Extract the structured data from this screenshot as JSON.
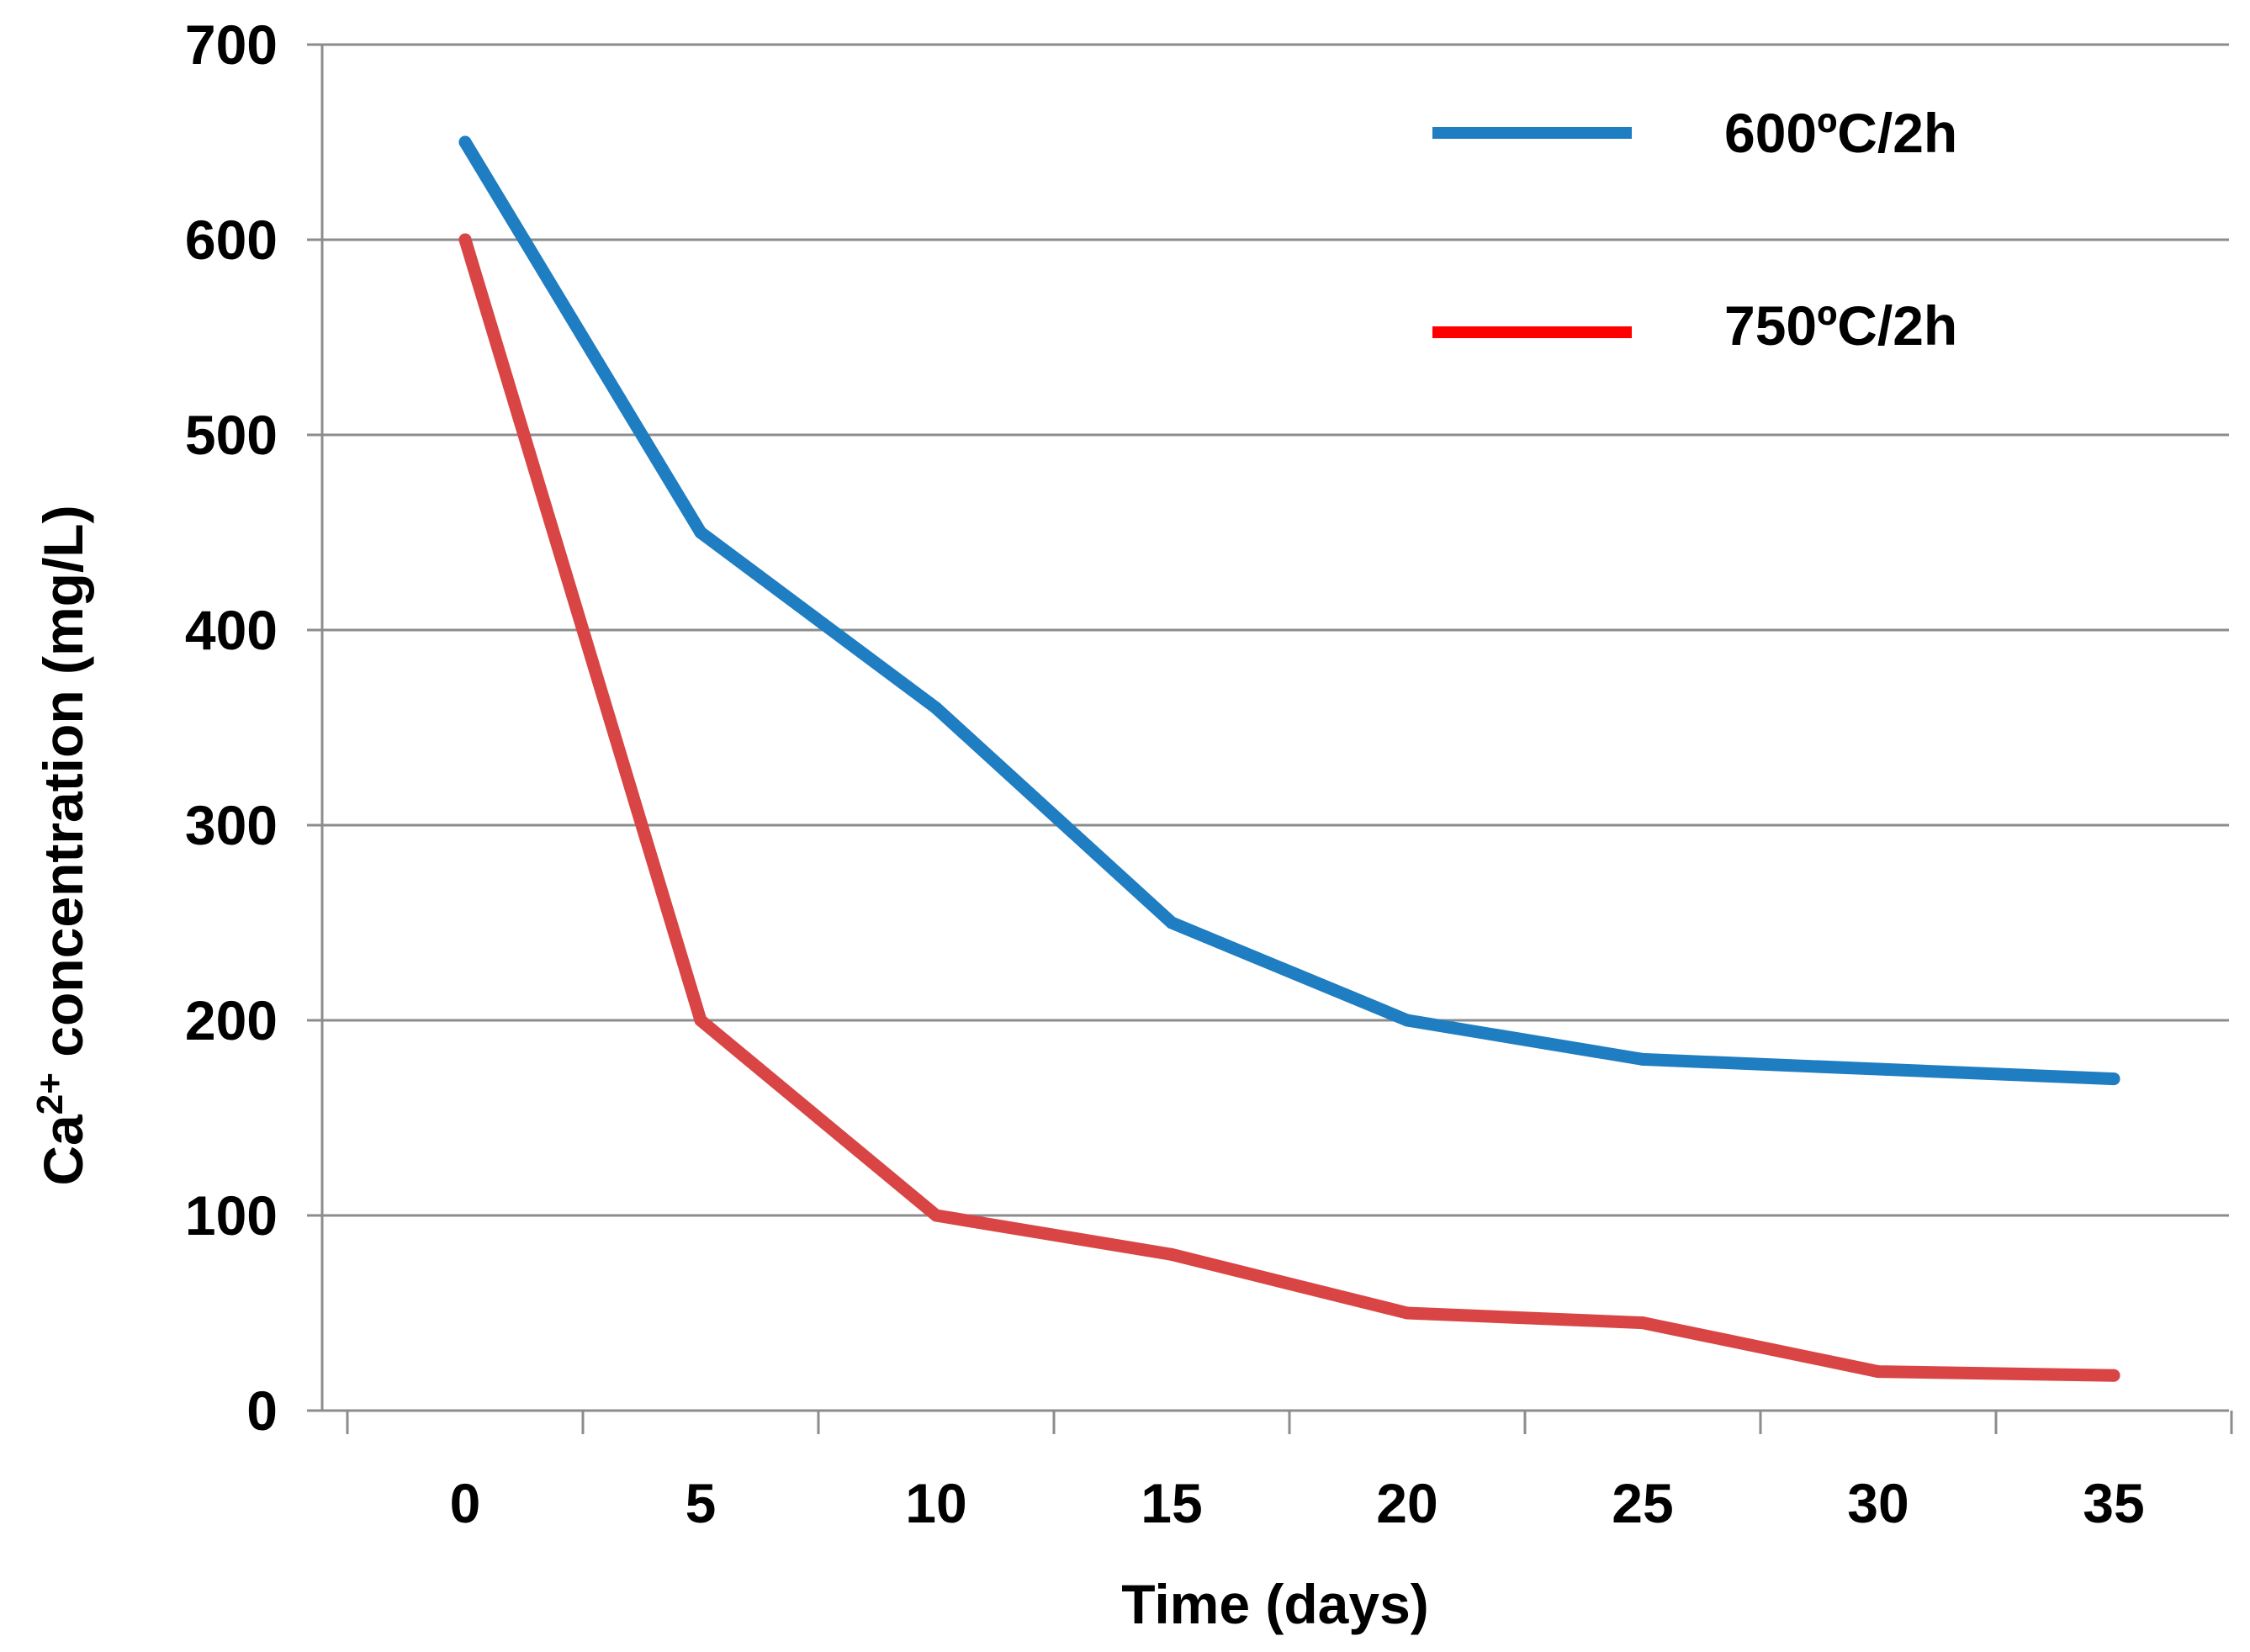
{
  "chart_data": {
    "type": "line",
    "title": "",
    "categories": [
      0,
      5,
      10,
      15,
      20,
      25,
      30,
      35
    ],
    "x_tick_labels": [
      "0",
      "5",
      "10",
      "15",
      "20",
      "25",
      "30",
      "35"
    ],
    "y_tick_labels": [
      "0",
      "100",
      "200",
      "300",
      "400",
      "500",
      "600",
      "700"
    ],
    "ylim": [
      0,
      700
    ],
    "ystep": 100,
    "grid": true,
    "legend_position": "top-right",
    "xlabel": "Time (days)",
    "ylabel": {
      "prefix": "Ca",
      "superscript": "2+",
      "suffix": " concentration (mg/L)"
    },
    "series": [
      {
        "name": "600ºC/2h",
        "color": "#1F7DC1",
        "legend_color": "#1F7DC1",
        "values": [
          650,
          450,
          360,
          250,
          200,
          180,
          175,
          170
        ]
      },
      {
        "name": "750ºC/2h",
        "color": "#D94545",
        "legend_color": "#FF0000",
        "values": [
          600,
          200,
          100,
          80,
          50,
          45,
          20,
          18
        ]
      }
    ]
  }
}
